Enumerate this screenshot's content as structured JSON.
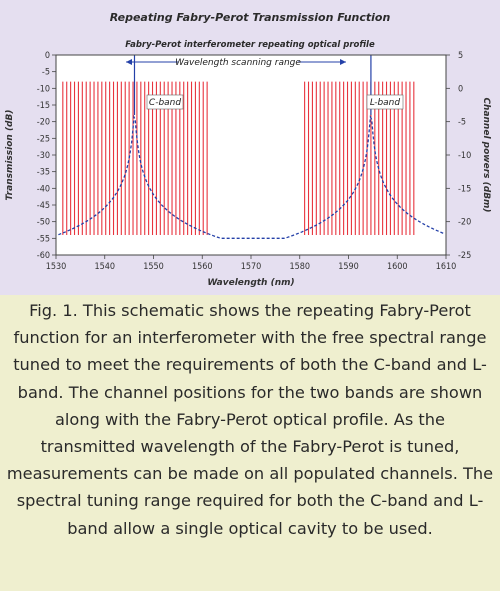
{
  "chart_data": {
    "type": "line",
    "title": "Repeating Fabry-Perot Transmission Function",
    "subtitle": "Fabry-Perot interferometer repeating optical profile",
    "xlabel": "Wavelength (nm)",
    "ylabel": "Transmission (dB)",
    "y2label": "Channel powers (dBm)",
    "xlim": [
      1530,
      1610
    ],
    "ylim": [
      -60,
      0
    ],
    "y2lim": [
      -25,
      5
    ],
    "xticks": [
      "1530",
      "1540",
      "1550",
      "1560",
      "1570",
      "1580",
      "1590",
      "1600",
      "1610"
    ],
    "yticks": [
      "0",
      "-5",
      "-10",
      "-15",
      "-20",
      "-25",
      "-30",
      "-35",
      "-40",
      "-45",
      "-50",
      "-55",
      "-60"
    ],
    "y2ticks": [
      "5",
      "0",
      "-5",
      "-10",
      "-15",
      "-20",
      "-25"
    ],
    "annotations": {
      "scan_range": "Wavelength scanning range",
      "c_band": "C-band",
      "l_band": "L-band"
    },
    "colors": {
      "channels": "#e8343e",
      "profile": "#2440a8",
      "frame": "#444444"
    },
    "series": [
      {
        "kind": "channel_lines",
        "x_start": 1531.4,
        "x_end": 1603.9,
        "spacing_nm": 0.8,
        "gap_nm": [
          1561.2,
          1580.7
        ],
        "top_dbm": 1,
        "bottom_dbm": -22
      },
      {
        "kind": "fabry_perot_profile",
        "peaks_nm": [
          1546.1,
          1594.6
        ],
        "peak_db": -18,
        "floor_db": -55,
        "half_width_nm": 0.25
      }
    ]
  },
  "caption": "Fig. 1. This schematic shows the repeating Fabry-Perot function for an interferometer with the free spectral range tuned to meet the requirements of both the C-band and L-band. The channel positions for the two bands are shown along with the Fabry-Perot optical profile. As the transmitted wavelength of the Fabry-Perot is tuned, measurements can be made on all populated channels. The spectral tuning range required for both the C-band and L-band allow a single optical cavity to be used."
}
